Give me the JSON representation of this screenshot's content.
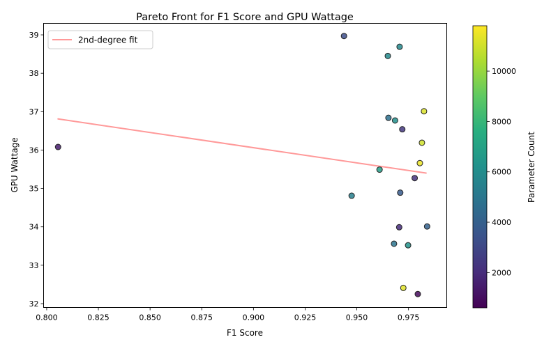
{
  "chart_data": {
    "type": "scatter",
    "title": "Pareto Front for F1 Score and GPU Wattage",
    "xlabel": "F1 Score",
    "ylabel": "GPU Wattage",
    "xlim": [
      0.7985,
      0.9935
    ],
    "ylim": [
      31.9,
      39.3
    ],
    "xticks": [
      0.8,
      0.825,
      0.85,
      0.875,
      0.9,
      0.925,
      0.95,
      0.975
    ],
    "xtick_labels": [
      "0.800",
      "0.825",
      "0.850",
      "0.875",
      "0.900",
      "0.925",
      "0.950",
      "0.975"
    ],
    "yticks": [
      32,
      33,
      34,
      35,
      36,
      37,
      38,
      39
    ],
    "ytick_labels": [
      "32",
      "33",
      "34",
      "35",
      "36",
      "37",
      "38",
      "39"
    ],
    "legend": {
      "position": "top-left",
      "entries": [
        "2nd-degree fit"
      ]
    },
    "fit_line": {
      "label": "2nd-degree fit",
      "color": "#ff9999",
      "x": [
        0.8055,
        0.9835
      ],
      "y": [
        36.81,
        35.4
      ]
    },
    "points": [
      {
        "x": 0.9438,
        "y": 38.97,
        "param": 3200
      },
      {
        "x": 0.9707,
        "y": 38.69,
        "param": 5800
      },
      {
        "x": 0.965,
        "y": 38.45,
        "param": 5900
      },
      {
        "x": 0.9825,
        "y": 37.01,
        "param": 11200
      },
      {
        "x": 0.9653,
        "y": 36.84,
        "param": 4700
      },
      {
        "x": 0.9685,
        "y": 36.77,
        "param": 6100
      },
      {
        "x": 0.972,
        "y": 36.54,
        "param": 2400
      },
      {
        "x": 0.8055,
        "y": 36.08,
        "param": 1500
      },
      {
        "x": 0.9815,
        "y": 36.19,
        "param": 11000
      },
      {
        "x": 0.9805,
        "y": 35.66,
        "param": 11500
      },
      {
        "x": 0.961,
        "y": 35.49,
        "param": 6800
      },
      {
        "x": 0.978,
        "y": 35.27,
        "param": 2200
      },
      {
        "x": 0.971,
        "y": 34.89,
        "param": 3800
      },
      {
        "x": 0.9475,
        "y": 34.81,
        "param": 5400
      },
      {
        "x": 0.984,
        "y": 34.01,
        "param": 4100
      },
      {
        "x": 0.9705,
        "y": 33.99,
        "param": 2000
      },
      {
        "x": 0.968,
        "y": 33.56,
        "param": 4900
      },
      {
        "x": 0.9748,
        "y": 33.52,
        "param": 6300
      },
      {
        "x": 0.9725,
        "y": 32.41,
        "param": 11300
      },
      {
        "x": 0.9795,
        "y": 32.25,
        "param": 900
      }
    ],
    "colorbar": {
      "label": "Parameter Count",
      "colormap": "viridis",
      "range": [
        600,
        11800
      ],
      "ticks": [
        2000,
        4000,
        6000,
        8000,
        10000
      ],
      "tick_labels": [
        "2000",
        "4000",
        "6000",
        "8000",
        "10000"
      ]
    }
  }
}
